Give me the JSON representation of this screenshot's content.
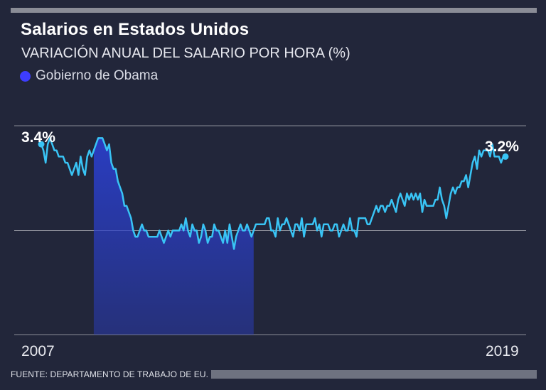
{
  "header": {
    "title": "Salarios en Estados Unidos",
    "subtitle": "VARIACIÓN ANUAL DEL SALARIO POR HORA (%)",
    "legend_label": "Gobierno de Obama"
  },
  "annotations": {
    "start_value": "3.4%",
    "end_value": "3.2%",
    "start_year": "2007",
    "end_year": "2019"
  },
  "footer": {
    "source": "FUENTE: DEPARTAMENTO DE TRABAJO DE EU."
  },
  "colors": {
    "background": "#22263a",
    "line": "#39c4f5",
    "shade": "#2a3ec8",
    "legend_dot": "#3d3dff",
    "gridline": "#8a8c96"
  },
  "chart_data": {
    "type": "line",
    "title": "Salarios en Estados Unidos",
    "subtitle": "VARIACIÓN ANUAL DEL SALARIO POR HORA (%)",
    "xlabel": "",
    "ylabel": "%",
    "x_start_label": "2007",
    "x_end_label": "2019",
    "ylim": [
      1.0,
      3.7
    ],
    "gridlines_at": [
      3.7,
      2.0
    ],
    "shaded_period": {
      "label": "Gobierno de Obama",
      "start_index": 24,
      "end_index": 97
    },
    "series": [
      {
        "name": "Variación anual del salario por hora",
        "values": [
          3.4,
          3.3,
          3.1,
          3.4,
          3.5,
          3.4,
          3.3,
          3.3,
          3.2,
          3.2,
          3.2,
          3.1,
          3.1,
          3.0,
          2.9,
          3.0,
          3.1,
          2.9,
          3.2,
          3.0,
          2.9,
          3.2,
          3.3,
          3.2,
          3.3,
          3.4,
          3.5,
          3.5,
          3.5,
          3.4,
          3.3,
          3.4,
          3.1,
          3.0,
          3.0,
          2.8,
          2.7,
          2.6,
          2.4,
          2.4,
          2.3,
          2.2,
          2.0,
          1.9,
          1.9,
          2.0,
          2.1,
          2.0,
          2.0,
          1.9,
          1.9,
          1.9,
          1.9,
          1.9,
          2.0,
          1.9,
          1.8,
          1.9,
          2.0,
          1.9,
          2.0,
          2.0,
          2.0,
          2.0,
          2.1,
          2.0,
          2.2,
          2.0,
          1.9,
          2.1,
          2.0,
          2.0,
          1.8,
          1.9,
          2.1,
          2.0,
          1.8,
          1.9,
          1.9,
          2.1,
          2.0,
          2.0,
          1.9,
          1.8,
          2.0,
          1.8,
          2.1,
          1.9,
          1.7,
          1.9,
          2.0,
          2.1,
          2.0,
          2.0,
          2.1,
          2.0,
          1.9,
          2.0,
          2.1,
          2.1,
          2.1,
          2.1,
          2.1,
          2.2,
          2.2,
          2.0,
          2.0,
          1.9,
          2.2,
          2.0,
          2.1,
          2.1,
          2.2,
          2.1,
          2.0,
          1.9,
          2.1,
          2.1,
          2.0,
          2.2,
          1.9,
          2.1,
          2.1,
          2.1,
          2.1,
          2.2,
          2.0,
          2.1,
          1.9,
          2.1,
          2.1,
          2.1,
          2.0,
          2.0,
          2.1,
          2.1,
          1.9,
          2.0,
          2.1,
          2.0,
          2.0,
          2.2,
          2.0,
          2.0,
          1.9,
          2.2,
          2.2,
          2.2,
          2.2,
          2.1,
          2.1,
          2.2,
          2.3,
          2.4,
          2.3,
          2.4,
          2.4,
          2.3,
          2.4,
          2.4,
          2.5,
          2.4,
          2.3,
          2.5,
          2.6,
          2.5,
          2.4,
          2.6,
          2.5,
          2.6,
          2.5,
          2.6,
          2.5,
          2.6,
          2.3,
          2.5,
          2.4,
          2.4,
          2.4,
          2.4,
          2.5,
          2.5,
          2.7,
          2.5,
          2.4,
          2.2,
          2.4,
          2.6,
          2.7,
          2.6,
          2.7,
          2.7,
          2.8,
          2.8,
          2.9,
          2.7,
          2.9,
          3.1,
          3.2,
          3.0,
          3.3,
          3.2,
          3.3,
          3.3,
          3.3,
          3.2,
          3.4,
          3.2,
          3.2,
          3.2,
          3.1,
          3.2,
          3.2
        ]
      }
    ]
  }
}
